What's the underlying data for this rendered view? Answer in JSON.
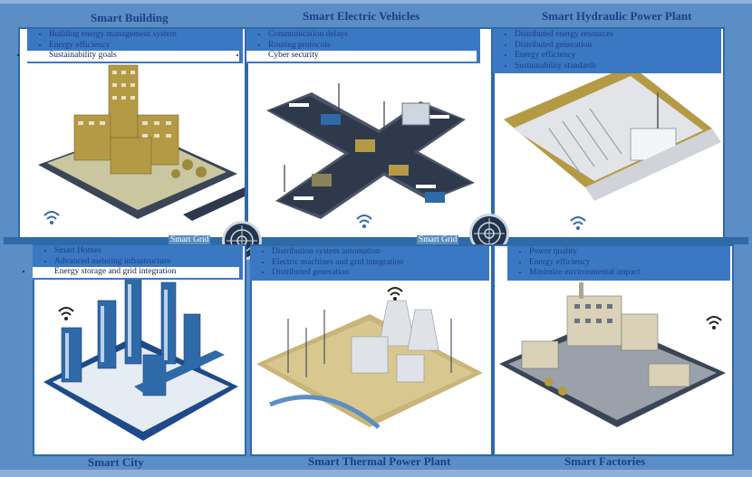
{
  "panels": {
    "building": {
      "title": "Smart Building",
      "items": [
        "Building energy management system",
        "Energy efficiency",
        "Sustainability goals"
      ]
    },
    "ev": {
      "title": "Smart Electric Vehicles",
      "items": [
        "Communication delays",
        "Routing protocols",
        "Cyber security"
      ]
    },
    "hydro": {
      "title": "Smart Hydraulic Power Plant",
      "items": [
        "Distributed energy resources",
        "Distributed generation",
        "Energy efficiency",
        "Sustainability standards"
      ]
    },
    "city": {
      "title": "Smart City",
      "items": [
        "Smart Homes",
        "Advanced metering infrastructure",
        "Energy storage and grid integration"
      ]
    },
    "thermal": {
      "title": "Smart Thermal Power Plant",
      "items": [
        "Distribution system automation",
        "Electric machines and grid integration",
        "Distributed generation"
      ]
    },
    "factories": {
      "title": "Smart Factories",
      "items": [
        "Power quality",
        "Energy efficiency",
        "Minimize environmental impact"
      ]
    }
  },
  "grid": {
    "left_label": "Smart Grid",
    "right_label": "Smart Grid"
  },
  "colors": {
    "background": "#5b8ec4",
    "panel_border": "#2f6aa8",
    "title": "#1d3f86",
    "info_band": "#3b78c3",
    "building_ochre": "#b59a45",
    "road": "#2e3a4c"
  },
  "icons": [
    "wifi-icon",
    "smart-grid-hub-icon"
  ]
}
